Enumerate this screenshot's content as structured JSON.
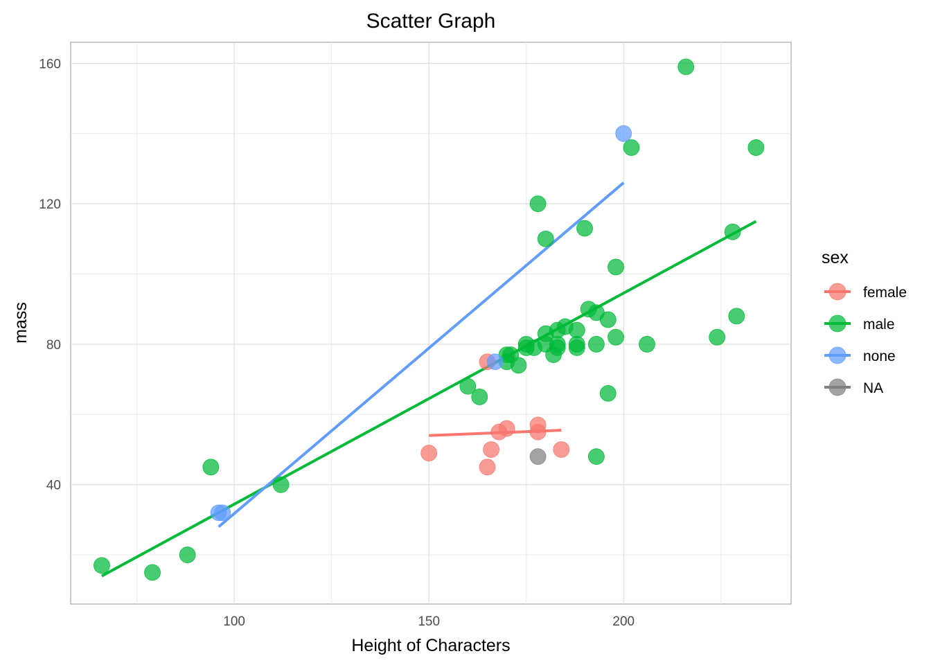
{
  "chart_data": {
    "type": "scatter",
    "title": "Scatter Graph",
    "xlabel": "Height of Characters",
    "ylabel": "mass",
    "xlim": [
      58,
      243
    ],
    "ylim": [
      6,
      166
    ],
    "x_ticks": [
      100,
      150,
      200
    ],
    "y_ticks": [
      40,
      80,
      120,
      160
    ],
    "x_minor": [
      75,
      125,
      175,
      225
    ],
    "y_minor": [
      20,
      60,
      100,
      140
    ],
    "grid": true,
    "legend": {
      "title": "sex",
      "placement": "right"
    },
    "series": [
      {
        "name": "female",
        "color": "#F8766D",
        "points": [
          [
            165,
            75
          ],
          [
            150,
            49
          ],
          [
            166,
            50
          ],
          [
            165,
            45
          ],
          [
            168,
            55
          ],
          [
            170,
            56
          ],
          [
            178,
            57
          ],
          [
            178,
            55
          ],
          [
            184,
            50
          ]
        ],
        "trend": [
          [
            150,
            54
          ],
          [
            184,
            55.5
          ]
        ]
      },
      {
        "name": "male",
        "color": "#00BA38",
        "points": [
          [
            66,
            17
          ],
          [
            79,
            15
          ],
          [
            88,
            20
          ],
          [
            94,
            45
          ],
          [
            112,
            40
          ],
          [
            160,
            68
          ],
          [
            163,
            65
          ],
          [
            170,
            77
          ],
          [
            170,
            75
          ],
          [
            171,
            77
          ],
          [
            173,
            74
          ],
          [
            175,
            80
          ],
          [
            175,
            79
          ],
          [
            177,
            79
          ],
          [
            178,
            120
          ],
          [
            180,
            110
          ],
          [
            180,
            83
          ],
          [
            180,
            80
          ],
          [
            182,
            77
          ],
          [
            183,
            84
          ],
          [
            183,
            80
          ],
          [
            183,
            79
          ],
          [
            185,
            85
          ],
          [
            188,
            84
          ],
          [
            188,
            80
          ],
          [
            188,
            79
          ],
          [
            190,
            113
          ],
          [
            191,
            90
          ],
          [
            193,
            89
          ],
          [
            193,
            48
          ],
          [
            193,
            80
          ],
          [
            196,
            87
          ],
          [
            196,
            66
          ],
          [
            198,
            102
          ],
          [
            198,
            82
          ],
          [
            202,
            136
          ],
          [
            206,
            80
          ],
          [
            216,
            159
          ],
          [
            224,
            82
          ],
          [
            228,
            112
          ],
          [
            229,
            88
          ],
          [
            234,
            136
          ]
        ],
        "trend": [
          [
            66,
            14
          ],
          [
            234,
            115
          ]
        ]
      },
      {
        "name": "none",
        "color": "#619CFF",
        "points": [
          [
            96,
            32
          ],
          [
            97,
            32
          ],
          [
            167,
            75
          ],
          [
            200,
            140
          ]
        ],
        "trend": [
          [
            96,
            28
          ],
          [
            200,
            126
          ]
        ]
      },
      {
        "name": "NA",
        "color": "#808080",
        "points": [
          [
            178,
            48
          ]
        ],
        "trend": null
      }
    ]
  }
}
